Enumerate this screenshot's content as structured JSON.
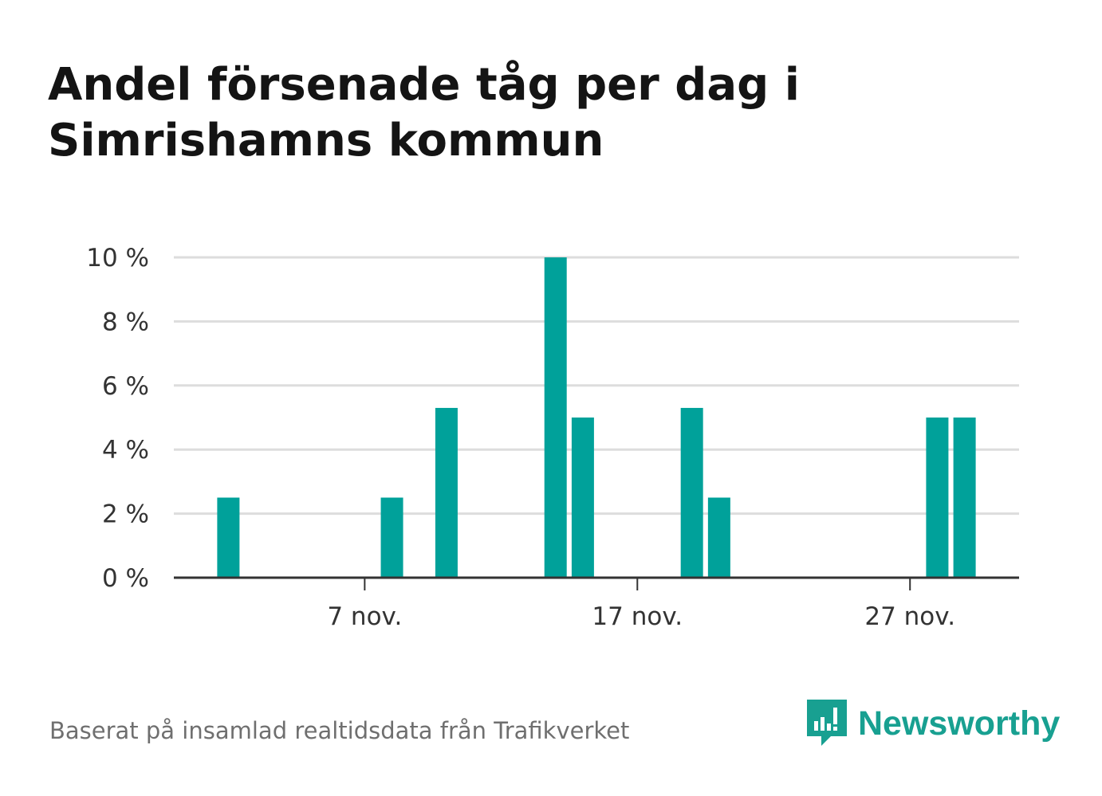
{
  "title": "Andel försenade tåg per dag i Simrishamns kommun",
  "source": "Baserat på insamlad realtidsdata från Trafikverket",
  "brand": {
    "name": "Newsworthy",
    "icon": "newsworthy-logo-icon"
  },
  "colors": {
    "bar": "#00a19a",
    "grid": "#dddddd",
    "axis": "#333333",
    "brand": "#18a091"
  },
  "chart_data": {
    "type": "bar",
    "x_start": "2024-11-01",
    "x_end": "2024-11-30",
    "ylim": [
      0,
      10
    ],
    "yticks": [
      0,
      2,
      4,
      6,
      8,
      10
    ],
    "ytick_labels": [
      "0 %",
      "2 %",
      "4 %",
      "6 %",
      "8 %",
      "10 %"
    ],
    "xtick_labels": [
      {
        "date": "2024-11-07",
        "label": "7 nov."
      },
      {
        "date": "2024-11-17",
        "label": "17 nov."
      },
      {
        "date": "2024-11-27",
        "label": "27 nov."
      }
    ],
    "bars": [
      {
        "date": "2024-11-02",
        "value": 2.5
      },
      {
        "date": "2024-11-08",
        "value": 2.5
      },
      {
        "date": "2024-11-10",
        "value": 5.3
      },
      {
        "date": "2024-11-14",
        "value": 10
      },
      {
        "date": "2024-11-15",
        "value": 5
      },
      {
        "date": "2024-11-19",
        "value": 5.3
      },
      {
        "date": "2024-11-20",
        "value": 2.5
      },
      {
        "date": "2024-11-28",
        "value": 5
      },
      {
        "date": "2024-11-29",
        "value": 5
      }
    ]
  }
}
